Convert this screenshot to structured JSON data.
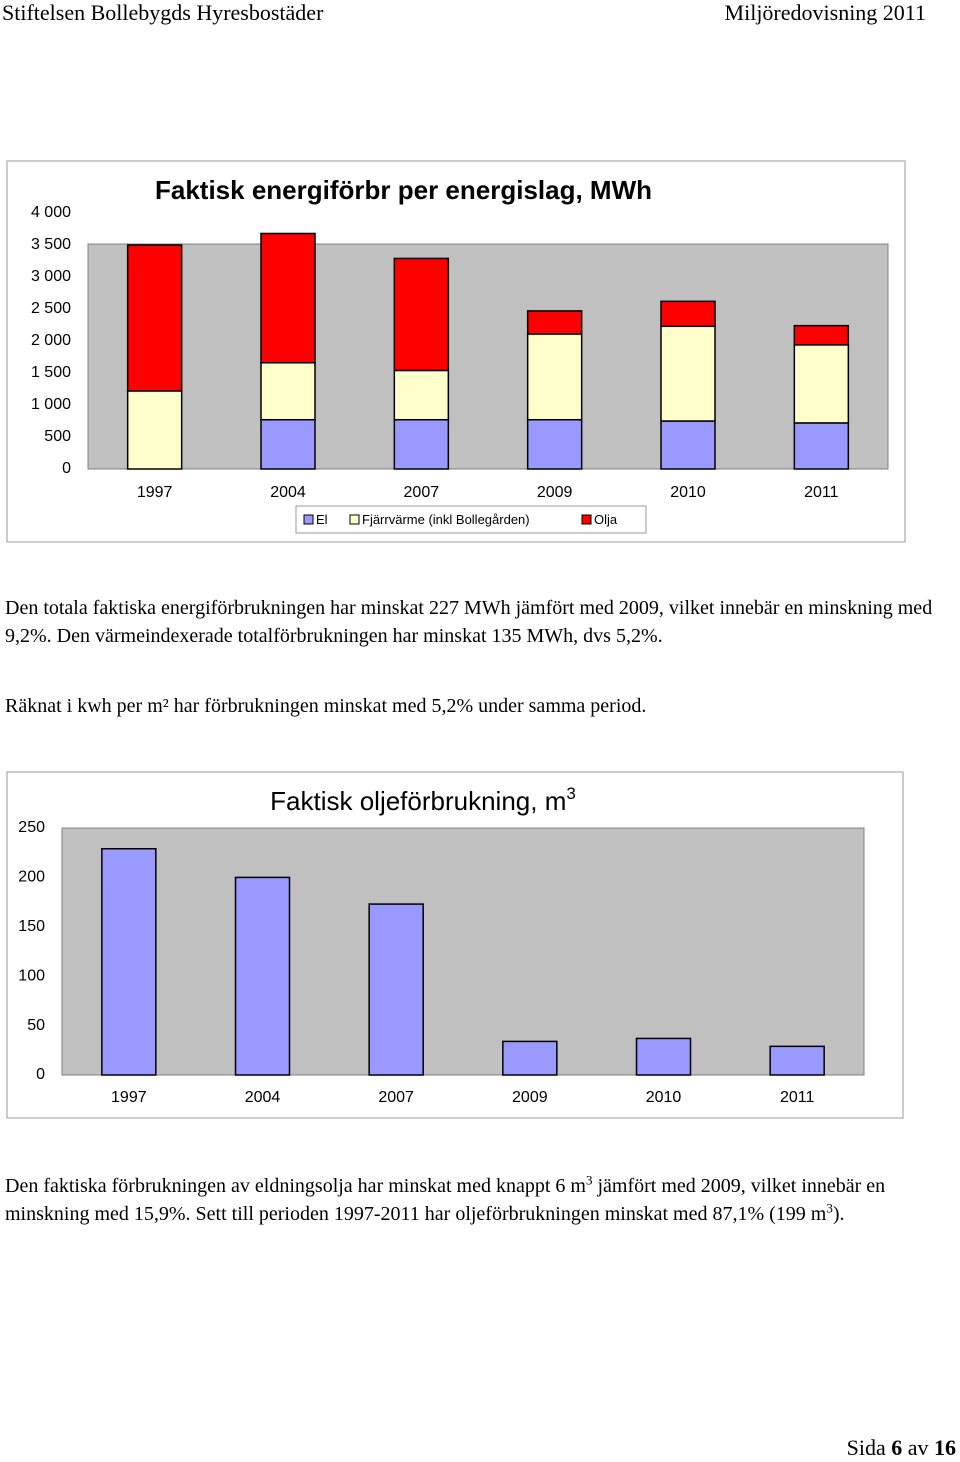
{
  "header": {
    "left": "Stiftelsen Bollebygds Hyresbostäder",
    "right": "Miljöredovisning 2011"
  },
  "chart_data": [
    {
      "type": "stacked-bar",
      "title": "Faktisk energiförbr per energislag, MWh",
      "categories": [
        "1997",
        "2004",
        "2007",
        "2009",
        "2010",
        "2011"
      ],
      "series": [
        {
          "name": "El",
          "color": "#9999ff",
          "values": [
            0,
            770,
            770,
            770,
            750,
            720
          ]
        },
        {
          "name": "Fjärrvärme (inkl Bollegården)",
          "color": "#ffffcc",
          "values": [
            1220,
            890,
            770,
            1340,
            1480,
            1220
          ]
        },
        {
          "name": "Olja",
          "color": "#ff0000",
          "values": [
            2280,
            2020,
            1750,
            360,
            390,
            300
          ]
        }
      ],
      "ylim": [
        0,
        4000
      ],
      "yticks": [
        0,
        500,
        {
          "value": 1000,
          "label": "1 000"
        },
        {
          "value": 1500,
          "label": "1 500"
        },
        {
          "value": 2000,
          "label": "2 000"
        },
        {
          "value": 2500,
          "label": "2 500"
        },
        {
          "value": 3000,
          "label": "3 000"
        },
        {
          "value": 3500,
          "label": "3 500"
        },
        {
          "value": 4000,
          "label": "4 000"
        }
      ],
      "grid": false,
      "legend": "bottom"
    },
    {
      "type": "bar",
      "title": "Faktisk oljeförbrukning, m",
      "title_superscript": "3",
      "categories": [
        "1997",
        "2004",
        "2007",
        "2009",
        "2010",
        "2011"
      ],
      "values": [
        229,
        200,
        173,
        34,
        37,
        29
      ],
      "color": "#9999ff",
      "ylim": [
        0,
        250
      ],
      "yticks": [
        0,
        50,
        100,
        150,
        200,
        250
      ],
      "grid": false
    }
  ],
  "paragraphs": [
    [
      "Den totala faktiska energiförbrukningen har minskat 227 MWh jämfört med 2009, vilket innebär en minskning med 9,2%. Den värmeindexerade totalförbrukningen har minskat 135 MWh, dvs 5,2%."
    ],
    [
      "Räknat i kwh per m² har förbrukningen minskat med 5,2% under samma period."
    ],
    [
      "Den faktiska förbrukningen av eldningsolja har minskat med knappt 6 m",
      {
        "sup": "3"
      },
      " jämfört med 2009, vilket innebär en minskning med 15,9%. Sett till perioden 1997-2011 har oljeförbrukningen minskat med 87,1% (199 m",
      {
        "sup": "3"
      },
      ")."
    ]
  ],
  "footer": [
    "Sida ",
    {
      "bold": "6"
    },
    " av ",
    {
      "bold": "16"
    }
  ]
}
